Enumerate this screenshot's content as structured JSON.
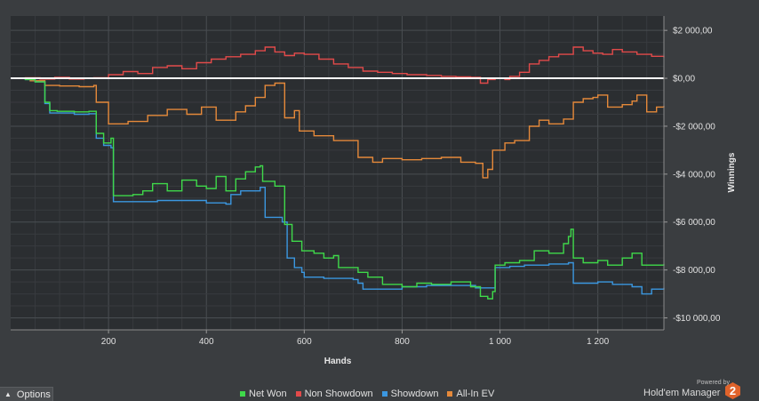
{
  "chart_data": {
    "type": "line",
    "xlabel": "Hands",
    "ylabel": "Winnings",
    "xlim": [
      0,
      1335
    ],
    "ylim": [
      -10500,
      2600
    ],
    "x_ticks": [
      200,
      400,
      600,
      800,
      1000,
      1200
    ],
    "x_tick_labels": [
      "200",
      "400",
      "600",
      "800",
      "1 000",
      "1 200"
    ],
    "y_ticks": [
      2000,
      0,
      -2000,
      -4000,
      -6000,
      -8000,
      -10000
    ],
    "y_tick_labels": [
      "$2 000,00",
      "$0,00",
      "-$2 000,00",
      "-$4 000,00",
      "-$6 000,00",
      "-$8 000,00",
      "-$10 000,00"
    ],
    "grid": true,
    "legend_position": "bottom",
    "series": [
      {
        "name": "Net Won",
        "color": "#3fd94a",
        "points": [
          [
            0,
            0
          ],
          [
            30,
            -50
          ],
          [
            50,
            -150
          ],
          [
            70,
            -1000
          ],
          [
            80,
            -1350
          ],
          [
            95,
            -1380
          ],
          [
            130,
            -1400
          ],
          [
            160,
            -1380
          ],
          [
            175,
            -2300
          ],
          [
            190,
            -2700
          ],
          [
            205,
            -2500
          ],
          [
            210,
            -4900
          ],
          [
            250,
            -4850
          ],
          [
            270,
            -4700
          ],
          [
            290,
            -4400
          ],
          [
            320,
            -4700
          ],
          [
            350,
            -4250
          ],
          [
            380,
            -4500
          ],
          [
            400,
            -4600
          ],
          [
            420,
            -4100
          ],
          [
            440,
            -4700
          ],
          [
            460,
            -4200
          ],
          [
            480,
            -3900
          ],
          [
            500,
            -3700
          ],
          [
            510,
            -3650
          ],
          [
            515,
            -4300
          ],
          [
            540,
            -4500
          ],
          [
            555,
            -4500
          ],
          [
            560,
            -6100
          ],
          [
            575,
            -6800
          ],
          [
            595,
            -7200
          ],
          [
            620,
            -7300
          ],
          [
            640,
            -7500
          ],
          [
            660,
            -7400
          ],
          [
            670,
            -7900
          ],
          [
            710,
            -8100
          ],
          [
            730,
            -8300
          ],
          [
            760,
            -8600
          ],
          [
            800,
            -8700
          ],
          [
            830,
            -8550
          ],
          [
            860,
            -8600
          ],
          [
            900,
            -8500
          ],
          [
            940,
            -8700
          ],
          [
            960,
            -9100
          ],
          [
            975,
            -9200
          ],
          [
            985,
            -8900
          ],
          [
            990,
            -7800
          ],
          [
            1010,
            -7700
          ],
          [
            1040,
            -7600
          ],
          [
            1070,
            -7200
          ],
          [
            1100,
            -7300
          ],
          [
            1130,
            -6900
          ],
          [
            1140,
            -6600
          ],
          [
            1145,
            -6300
          ],
          [
            1150,
            -7500
          ],
          [
            1170,
            -7700
          ],
          [
            1200,
            -7600
          ],
          [
            1220,
            -7800
          ],
          [
            1250,
            -7500
          ],
          [
            1270,
            -7300
          ],
          [
            1290,
            -7800
          ],
          [
            1335,
            -7750
          ]
        ]
      },
      {
        "name": "Non Showdown",
        "color": "#e24a4a",
        "points": [
          [
            0,
            0
          ],
          [
            30,
            20
          ],
          [
            60,
            -30
          ],
          [
            90,
            40
          ],
          [
            120,
            -30
          ],
          [
            150,
            0
          ],
          [
            170,
            20
          ],
          [
            200,
            150
          ],
          [
            230,
            280
          ],
          [
            260,
            200
          ],
          [
            290,
            450
          ],
          [
            320,
            520
          ],
          [
            350,
            400
          ],
          [
            380,
            650
          ],
          [
            410,
            800
          ],
          [
            440,
            900
          ],
          [
            470,
            1000
          ],
          [
            500,
            1150
          ],
          [
            520,
            1300
          ],
          [
            540,
            1100
          ],
          [
            560,
            950
          ],
          [
            580,
            1050
          ],
          [
            600,
            1000
          ],
          [
            630,
            800
          ],
          [
            660,
            600
          ],
          [
            690,
            450
          ],
          [
            720,
            300
          ],
          [
            750,
            250
          ],
          [
            780,
            200
          ],
          [
            810,
            150
          ],
          [
            850,
            120
          ],
          [
            880,
            80
          ],
          [
            910,
            60
          ],
          [
            940,
            40
          ],
          [
            960,
            -200
          ],
          [
            975,
            -50
          ],
          [
            990,
            0
          ],
          [
            1010,
            -50
          ],
          [
            1020,
            80
          ],
          [
            1040,
            250
          ],
          [
            1060,
            600
          ],
          [
            1080,
            750
          ],
          [
            1100,
            900
          ],
          [
            1120,
            1000
          ],
          [
            1150,
            1300
          ],
          [
            1170,
            1150
          ],
          [
            1190,
            1050
          ],
          [
            1210,
            1000
          ],
          [
            1230,
            1200
          ],
          [
            1250,
            1100
          ],
          [
            1280,
            1000
          ],
          [
            1310,
            920
          ],
          [
            1335,
            870
          ]
        ]
      },
      {
        "name": "Showdown",
        "color": "#3b97e0",
        "points": [
          [
            0,
            0
          ],
          [
            30,
            -50
          ],
          [
            50,
            -150
          ],
          [
            70,
            -1050
          ],
          [
            80,
            -1450
          ],
          [
            95,
            -1450
          ],
          [
            130,
            -1500
          ],
          [
            160,
            -1480
          ],
          [
            175,
            -2500
          ],
          [
            190,
            -2800
          ],
          [
            205,
            -2900
          ],
          [
            210,
            -5150
          ],
          [
            280,
            -5150
          ],
          [
            300,
            -5100
          ],
          [
            400,
            -5200
          ],
          [
            440,
            -5250
          ],
          [
            450,
            -4850
          ],
          [
            470,
            -4700
          ],
          [
            510,
            -4550
          ],
          [
            520,
            -5800
          ],
          [
            540,
            -5800
          ],
          [
            555,
            -6000
          ],
          [
            565,
            -7500
          ],
          [
            580,
            -7900
          ],
          [
            595,
            -8100
          ],
          [
            600,
            -8300
          ],
          [
            640,
            -8350
          ],
          [
            700,
            -8400
          ],
          [
            710,
            -8550
          ],
          [
            720,
            -8800
          ],
          [
            760,
            -8800
          ],
          [
            800,
            -8700
          ],
          [
            850,
            -8650
          ],
          [
            900,
            -8650
          ],
          [
            950,
            -8750
          ],
          [
            980,
            -8750
          ],
          [
            990,
            -7900
          ],
          [
            1020,
            -7850
          ],
          [
            1050,
            -7800
          ],
          [
            1100,
            -7750
          ],
          [
            1140,
            -7700
          ],
          [
            1150,
            -8550
          ],
          [
            1200,
            -8500
          ],
          [
            1230,
            -8600
          ],
          [
            1270,
            -8700
          ],
          [
            1290,
            -9000
          ],
          [
            1310,
            -8800
          ],
          [
            1335,
            -8750
          ]
        ]
      },
      {
        "name": "All-In EV",
        "color": "#e5893a",
        "points": [
          [
            0,
            0
          ],
          [
            40,
            -100
          ],
          [
            70,
            -300
          ],
          [
            100,
            -320
          ],
          [
            140,
            -350
          ],
          [
            170,
            -300
          ],
          [
            175,
            -1000
          ],
          [
            200,
            -1900
          ],
          [
            240,
            -1800
          ],
          [
            280,
            -1550
          ],
          [
            320,
            -1300
          ],
          [
            360,
            -1500
          ],
          [
            390,
            -1200
          ],
          [
            420,
            -1750
          ],
          [
            460,
            -1400
          ],
          [
            480,
            -1150
          ],
          [
            500,
            -800
          ],
          [
            520,
            -300
          ],
          [
            540,
            -200
          ],
          [
            560,
            -1650
          ],
          [
            580,
            -1350
          ],
          [
            590,
            -2200
          ],
          [
            620,
            -2400
          ],
          [
            660,
            -2600
          ],
          [
            700,
            -2600
          ],
          [
            710,
            -3300
          ],
          [
            740,
            -3500
          ],
          [
            760,
            -3350
          ],
          [
            800,
            -3400
          ],
          [
            840,
            -3350
          ],
          [
            880,
            -3300
          ],
          [
            920,
            -3500
          ],
          [
            950,
            -3550
          ],
          [
            965,
            -4150
          ],
          [
            975,
            -3800
          ],
          [
            985,
            -3000
          ],
          [
            1010,
            -2700
          ],
          [
            1030,
            -2600
          ],
          [
            1060,
            -2000
          ],
          [
            1080,
            -1750
          ],
          [
            1100,
            -1900
          ],
          [
            1130,
            -1700
          ],
          [
            1150,
            -1000
          ],
          [
            1170,
            -850
          ],
          [
            1190,
            -800
          ],
          [
            1200,
            -700
          ],
          [
            1220,
            -1200
          ],
          [
            1250,
            -1100
          ],
          [
            1270,
            -950
          ],
          [
            1280,
            -700
          ],
          [
            1300,
            -1400
          ],
          [
            1320,
            -1200
          ],
          [
            1335,
            -1150
          ]
        ]
      }
    ],
    "reference_lines": [
      {
        "y": 0,
        "color": "#ffffff"
      }
    ]
  },
  "ui": {
    "options_label": "Options",
    "powered_by": "Powered by",
    "brand_name": "Hold'em Manager",
    "brand_badge": "2"
  }
}
